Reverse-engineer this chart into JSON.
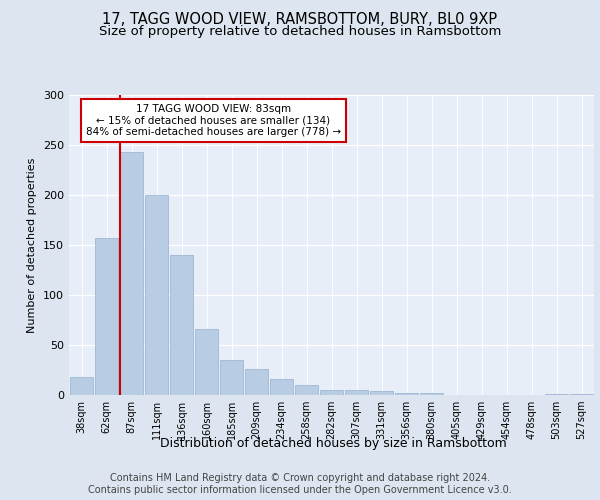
{
  "title": "17, TAGG WOOD VIEW, RAMSBOTTOM, BURY, BL0 9XP",
  "subtitle": "Size of property relative to detached houses in Ramsbottom",
  "xlabel": "Distribution of detached houses by size in Ramsbottom",
  "ylabel": "Number of detached properties",
  "categories": [
    "38sqm",
    "62sqm",
    "87sqm",
    "111sqm",
    "136sqm",
    "160sqm",
    "185sqm",
    "209sqm",
    "234sqm",
    "258sqm",
    "282sqm",
    "307sqm",
    "331sqm",
    "356sqm",
    "380sqm",
    "405sqm",
    "429sqm",
    "454sqm",
    "478sqm",
    "503sqm",
    "527sqm"
  ],
  "values": [
    18,
    157,
    243,
    200,
    140,
    66,
    35,
    26,
    16,
    10,
    5,
    5,
    4,
    2,
    2,
    0,
    0,
    0,
    0,
    1,
    1
  ],
  "bar_color": "#b8cce4",
  "bar_edge_color": "#9db8d4",
  "vline_x_index": 2,
  "vline_color": "#cc0000",
  "annotation_text": "17 TAGG WOOD VIEW: 83sqm\n← 15% of detached houses are smaller (134)\n84% of semi-detached houses are larger (778) →",
  "annotation_box_color": "#ffffff",
  "annotation_box_edge": "#cc0000",
  "ylim": [
    0,
    300
  ],
  "yticks": [
    0,
    50,
    100,
    150,
    200,
    250,
    300
  ],
  "bg_color": "#dde5f0",
  "plot_bg_color": "#e8eef8",
  "footer_text": "Contains HM Land Registry data © Crown copyright and database right 2024.\nContains public sector information licensed under the Open Government Licence v3.0.",
  "title_fontsize": 10.5,
  "subtitle_fontsize": 9.5,
  "footer_fontsize": 7.0,
  "bar_width": 0.92
}
